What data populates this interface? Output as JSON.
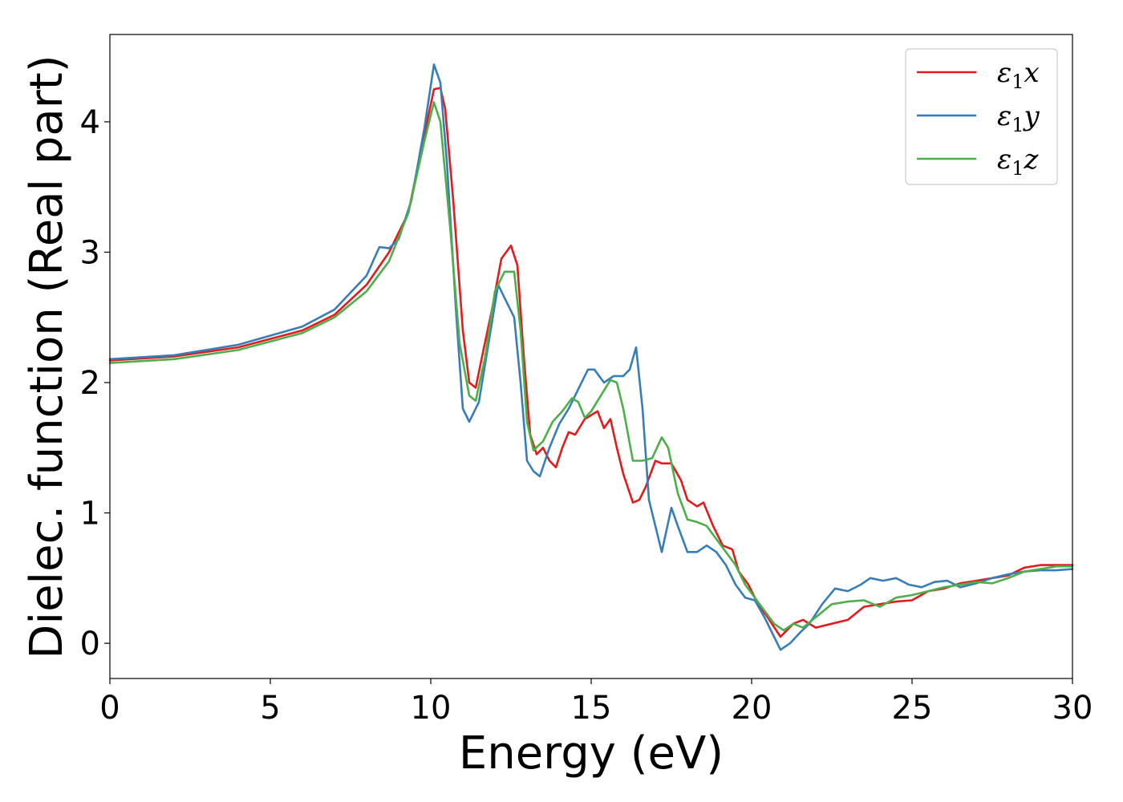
{
  "chart_data": {
    "type": "line",
    "title": "",
    "xlabel": "Energy (eV)",
    "ylabel": "Dielec. function (Real part)",
    "xlim": [
      0,
      30
    ],
    "ylim": [
      -0.27,
      4.67
    ],
    "xticks": [
      0,
      5,
      10,
      15,
      20,
      25,
      30
    ],
    "yticks": [
      0,
      1,
      2,
      3,
      4
    ],
    "grid": false,
    "legend_position": "top-right",
    "series": [
      {
        "name": "ε₁x",
        "legend_base": "ε",
        "legend_sub": "1",
        "legend_var": "x",
        "color": "#e41a1c",
        "points": [
          [
            0,
            2.17
          ],
          [
            2,
            2.2
          ],
          [
            4,
            2.27
          ],
          [
            6,
            2.4
          ],
          [
            7,
            2.52
          ],
          [
            8,
            2.75
          ],
          [
            8.7,
            3.0
          ],
          [
            9.3,
            3.3
          ],
          [
            9.8,
            3.9
          ],
          [
            10.1,
            4.25
          ],
          [
            10.3,
            4.26
          ],
          [
            10.45,
            4.1
          ],
          [
            10.7,
            3.4
          ],
          [
            11.0,
            2.4
          ],
          [
            11.2,
            2.0
          ],
          [
            11.4,
            1.96
          ],
          [
            11.6,
            2.2
          ],
          [
            11.9,
            2.55
          ],
          [
            12.2,
            2.95
          ],
          [
            12.5,
            3.05
          ],
          [
            12.7,
            2.9
          ],
          [
            12.9,
            2.2
          ],
          [
            13.1,
            1.6
          ],
          [
            13.3,
            1.45
          ],
          [
            13.5,
            1.5
          ],
          [
            13.7,
            1.4
          ],
          [
            13.9,
            1.35
          ],
          [
            14.1,
            1.5
          ],
          [
            14.3,
            1.62
          ],
          [
            14.5,
            1.6
          ],
          [
            14.8,
            1.72
          ],
          [
            15.0,
            1.75
          ],
          [
            15.2,
            1.78
          ],
          [
            15.4,
            1.65
          ],
          [
            15.6,
            1.72
          ],
          [
            15.8,
            1.5
          ],
          [
            16.0,
            1.3
          ],
          [
            16.3,
            1.08
          ],
          [
            16.5,
            1.1
          ],
          [
            16.7,
            1.2
          ],
          [
            17.0,
            1.4
          ],
          [
            17.2,
            1.38
          ],
          [
            17.5,
            1.38
          ],
          [
            17.8,
            1.25
          ],
          [
            18.0,
            1.1
          ],
          [
            18.3,
            1.05
          ],
          [
            18.5,
            1.08
          ],
          [
            18.8,
            0.9
          ],
          [
            19.1,
            0.75
          ],
          [
            19.4,
            0.72
          ],
          [
            19.6,
            0.55
          ],
          [
            19.9,
            0.45
          ],
          [
            20.2,
            0.3
          ],
          [
            20.5,
            0.2
          ],
          [
            20.9,
            0.05
          ],
          [
            21.3,
            0.15
          ],
          [
            21.6,
            0.18
          ],
          [
            22.0,
            0.12
          ],
          [
            22.5,
            0.15
          ],
          [
            23.0,
            0.18
          ],
          [
            23.5,
            0.28
          ],
          [
            24.0,
            0.3
          ],
          [
            24.5,
            0.32
          ],
          [
            25.0,
            0.33
          ],
          [
            25.5,
            0.4
          ],
          [
            26.0,
            0.42
          ],
          [
            26.5,
            0.46
          ],
          [
            27.0,
            0.48
          ],
          [
            27.5,
            0.5
          ],
          [
            28.0,
            0.52
          ],
          [
            28.5,
            0.58
          ],
          [
            29.0,
            0.6
          ],
          [
            29.5,
            0.6
          ],
          [
            30,
            0.6
          ]
        ]
      },
      {
        "name": "ε₁y",
        "legend_base": "ε",
        "legend_sub": "1",
        "legend_var": "y",
        "color": "#377eb8",
        "points": [
          [
            0,
            2.18
          ],
          [
            2,
            2.21
          ],
          [
            4,
            2.29
          ],
          [
            6,
            2.43
          ],
          [
            7,
            2.56
          ],
          [
            8,
            2.82
          ],
          [
            8.4,
            3.04
          ],
          [
            8.7,
            3.03
          ],
          [
            9.0,
            3.1
          ],
          [
            9.4,
            3.4
          ],
          [
            9.8,
            3.95
          ],
          [
            10.1,
            4.44
          ],
          [
            10.3,
            4.3
          ],
          [
            10.5,
            3.7
          ],
          [
            10.8,
            2.5
          ],
          [
            11.0,
            1.8
          ],
          [
            11.2,
            1.7
          ],
          [
            11.5,
            1.85
          ],
          [
            11.8,
            2.3
          ],
          [
            12.1,
            2.75
          ],
          [
            12.3,
            2.65
          ],
          [
            12.6,
            2.5
          ],
          [
            12.8,
            2.0
          ],
          [
            13.0,
            1.4
          ],
          [
            13.2,
            1.32
          ],
          [
            13.4,
            1.28
          ],
          [
            13.7,
            1.5
          ],
          [
            14.0,
            1.68
          ],
          [
            14.3,
            1.8
          ],
          [
            14.6,
            1.95
          ],
          [
            14.9,
            2.1
          ],
          [
            15.1,
            2.1
          ],
          [
            15.4,
            2.0
          ],
          [
            15.7,
            2.05
          ],
          [
            16.0,
            2.05
          ],
          [
            16.2,
            2.1
          ],
          [
            16.4,
            2.27
          ],
          [
            16.6,
            1.8
          ],
          [
            16.8,
            1.1
          ],
          [
            17.0,
            0.9
          ],
          [
            17.2,
            0.7
          ],
          [
            17.5,
            1.04
          ],
          [
            17.7,
            0.9
          ],
          [
            18.0,
            0.7
          ],
          [
            18.3,
            0.7
          ],
          [
            18.6,
            0.75
          ],
          [
            18.9,
            0.7
          ],
          [
            19.2,
            0.6
          ],
          [
            19.5,
            0.45
          ],
          [
            19.8,
            0.35
          ],
          [
            20.1,
            0.33
          ],
          [
            20.4,
            0.2
          ],
          [
            20.7,
            0.05
          ],
          [
            20.9,
            -0.05
          ],
          [
            21.2,
            0.0
          ],
          [
            21.5,
            0.08
          ],
          [
            21.8,
            0.15
          ],
          [
            22.2,
            0.3
          ],
          [
            22.6,
            0.42
          ],
          [
            23.0,
            0.4
          ],
          [
            23.4,
            0.45
          ],
          [
            23.7,
            0.5
          ],
          [
            24.1,
            0.48
          ],
          [
            24.5,
            0.5
          ],
          [
            24.9,
            0.45
          ],
          [
            25.3,
            0.43
          ],
          [
            25.7,
            0.47
          ],
          [
            26.1,
            0.48
          ],
          [
            26.5,
            0.43
          ],
          [
            27.0,
            0.46
          ],
          [
            27.5,
            0.5
          ],
          [
            28.0,
            0.53
          ],
          [
            28.5,
            0.55
          ],
          [
            29.0,
            0.56
          ],
          [
            29.5,
            0.56
          ],
          [
            30,
            0.57
          ]
        ]
      },
      {
        "name": "ε₁z",
        "legend_base": "ε",
        "legend_sub": "1",
        "legend_var": "z",
        "color": "#4daf4a",
        "points": [
          [
            0,
            2.15
          ],
          [
            2,
            2.18
          ],
          [
            4,
            2.25
          ],
          [
            6,
            2.38
          ],
          [
            7,
            2.5
          ],
          [
            8,
            2.7
          ],
          [
            8.7,
            2.93
          ],
          [
            9.3,
            3.3
          ],
          [
            9.8,
            3.85
          ],
          [
            10.1,
            4.15
          ],
          [
            10.3,
            4.0
          ],
          [
            10.6,
            3.2
          ],
          [
            10.9,
            2.3
          ],
          [
            11.2,
            1.9
          ],
          [
            11.4,
            1.86
          ],
          [
            11.7,
            2.2
          ],
          [
            12.0,
            2.7
          ],
          [
            12.3,
            2.85
          ],
          [
            12.6,
            2.85
          ],
          [
            12.8,
            2.4
          ],
          [
            13.0,
            1.7
          ],
          [
            13.2,
            1.48
          ],
          [
            13.5,
            1.55
          ],
          [
            13.8,
            1.7
          ],
          [
            14.1,
            1.78
          ],
          [
            14.4,
            1.88
          ],
          [
            14.6,
            1.85
          ],
          [
            14.8,
            1.73
          ],
          [
            15.0,
            1.78
          ],
          [
            15.3,
            1.9
          ],
          [
            15.6,
            2.02
          ],
          [
            15.8,
            2.0
          ],
          [
            16.0,
            1.8
          ],
          [
            16.3,
            1.4
          ],
          [
            16.6,
            1.4
          ],
          [
            16.9,
            1.42
          ],
          [
            17.2,
            1.58
          ],
          [
            17.4,
            1.5
          ],
          [
            17.7,
            1.15
          ],
          [
            18.0,
            0.95
          ],
          [
            18.3,
            0.93
          ],
          [
            18.6,
            0.9
          ],
          [
            18.9,
            0.8
          ],
          [
            19.2,
            0.7
          ],
          [
            19.5,
            0.6
          ],
          [
            19.8,
            0.45
          ],
          [
            20.1,
            0.35
          ],
          [
            20.4,
            0.25
          ],
          [
            20.7,
            0.15
          ],
          [
            21.0,
            0.1
          ],
          [
            21.3,
            0.15
          ],
          [
            21.6,
            0.12
          ],
          [
            22.0,
            0.2
          ],
          [
            22.5,
            0.3
          ],
          [
            23.0,
            0.32
          ],
          [
            23.5,
            0.33
          ],
          [
            24.0,
            0.28
          ],
          [
            24.5,
            0.35
          ],
          [
            25.0,
            0.37
          ],
          [
            25.5,
            0.4
          ],
          [
            26.0,
            0.43
          ],
          [
            26.5,
            0.45
          ],
          [
            27.0,
            0.47
          ],
          [
            27.5,
            0.46
          ],
          [
            28.0,
            0.5
          ],
          [
            28.5,
            0.55
          ],
          [
            29.0,
            0.57
          ],
          [
            29.5,
            0.59
          ],
          [
            30,
            0.59
          ]
        ]
      }
    ]
  }
}
